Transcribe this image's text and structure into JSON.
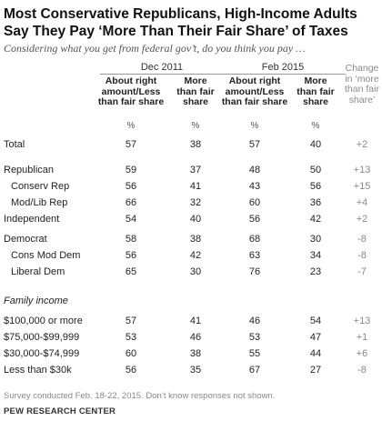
{
  "title": "Most Conservative Republicans, High-Income Adults Say They Pay ‘More Than Their Fair Share’ of Taxes",
  "subtitle": "Considering what you get from federal gov’t, do you think you pay …",
  "periods": [
    "Dec 2011",
    "Feb 2015"
  ],
  "columns": {
    "right_less": "About right amount/Less than fair share",
    "more": "More than fair share",
    "change": "Change in ‘more than fair share’",
    "unit": "%"
  },
  "section_label": "Family income",
  "footnote": "Survey conducted Feb. 18-22, 2015. Don’t know responses not shown.",
  "source": "PEW RESEARCH CENTER",
  "colors": {
    "text": "#222222",
    "muted": "#8a8a8a",
    "rule": "#9a9a9a"
  },
  "chart_data": {
    "type": "table",
    "headers": [
      "",
      "Dec 2011 About right amount/Less than fair share",
      "Dec 2011 More than fair share",
      "Feb 2015 About right amount/Less than fair share",
      "Feb 2015 More than fair share",
      "Change in ‘more than fair share’"
    ],
    "rows": [
      {
        "label": "Total",
        "indent": 0,
        "values": [
          "57",
          "38",
          "57",
          "40",
          "+2"
        ]
      },
      {
        "label": "Republican",
        "indent": 0,
        "values": [
          "59",
          "37",
          "48",
          "50",
          "+13"
        ]
      },
      {
        "label": "Conserv Rep",
        "indent": 1,
        "values": [
          "56",
          "41",
          "43",
          "56",
          "+15"
        ]
      },
      {
        "label": "Mod/Lib Rep",
        "indent": 1,
        "values": [
          "66",
          "32",
          "60",
          "36",
          "+4"
        ]
      },
      {
        "label": "Independent",
        "indent": 0,
        "values": [
          "54",
          "40",
          "56",
          "42",
          "+2"
        ]
      },
      {
        "label": "Democrat",
        "indent": 0,
        "values": [
          "58",
          "38",
          "68",
          "30",
          "-8"
        ]
      },
      {
        "label": "Cons Mod Dem",
        "indent": 1,
        "values": [
          "56",
          "42",
          "63",
          "34",
          "-8"
        ]
      },
      {
        "label": "Liberal Dem",
        "indent": 1,
        "values": [
          "65",
          "30",
          "76",
          "23",
          "-7"
        ]
      },
      {
        "label": "$100,000 or more",
        "indent": 0,
        "values": [
          "57",
          "41",
          "46",
          "54",
          "+13"
        ]
      },
      {
        "label": "$75,000-$99,999",
        "indent": 0,
        "values": [
          "53",
          "46",
          "53",
          "47",
          "+1"
        ]
      },
      {
        "label": "$30,000-$74,999",
        "indent": 0,
        "values": [
          "60",
          "38",
          "55",
          "44",
          "+6"
        ]
      },
      {
        "label": "Less than $30k",
        "indent": 0,
        "values": [
          "56",
          "35",
          "67",
          "27",
          "-8"
        ]
      }
    ]
  }
}
